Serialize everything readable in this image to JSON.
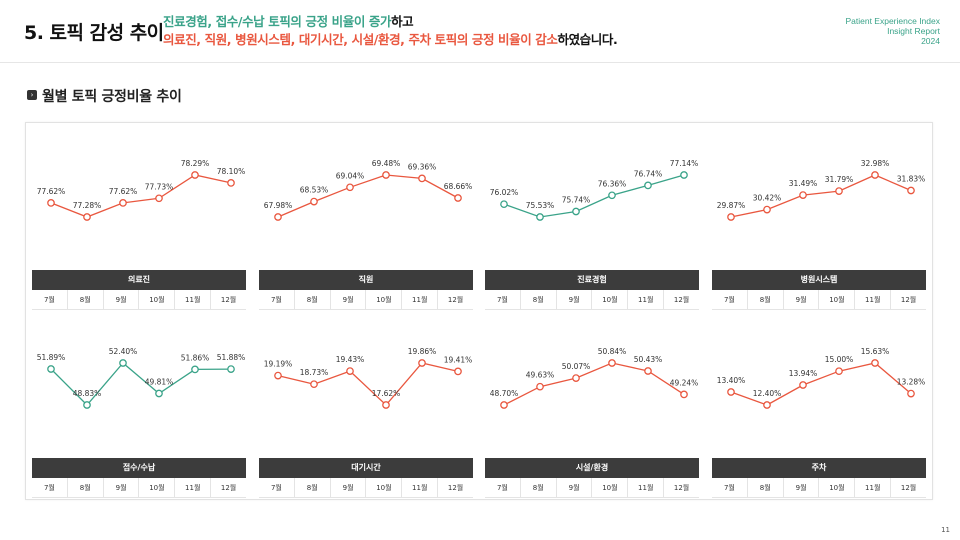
{
  "header": {
    "title": "5. 토픽 감성 추이",
    "subtitle_line1": {
      "green": "진료경험, 접수/수납 토픽의 긍정 비율이 증가",
      "black": "하고"
    },
    "subtitle_line2": {
      "red": "의료진, 직원, 병원시스템, 대기시간, 시설/환경, 주차 토픽의 긍정 비율이 감소",
      "black": "하였습니다."
    },
    "report_lines": [
      "Patient Experience Index",
      "Insight Report",
      "2024"
    ]
  },
  "section": {
    "icon": "chevron-right-icon",
    "title": "월별 토픽 긍정비율 추이"
  },
  "colors": {
    "increase": "#3aa389",
    "decrease": "#e9573f",
    "bar": "#3c3c3c"
  },
  "page_number": "11",
  "chart_data": [
    {
      "type": "line",
      "title": "의료진",
      "trend": "decrease",
      "categories": [
        "7월",
        "8월",
        "9월",
        "10월",
        "11월",
        "12월"
      ],
      "values": [
        77.62,
        77.28,
        77.62,
        77.73,
        78.29,
        78.1
      ],
      "labels": [
        "77.62%",
        "77.28%",
        "77.62%",
        "77.73%",
        "78.29%",
        "78.10%"
      ]
    },
    {
      "type": "line",
      "title": "직원",
      "trend": "decrease",
      "categories": [
        "7월",
        "8월",
        "9월",
        "10월",
        "11월",
        "12월"
      ],
      "values": [
        67.98,
        68.53,
        69.04,
        69.48,
        69.36,
        68.66
      ],
      "labels": [
        "67.98%",
        "68.53%",
        "69.04%",
        "69.48%",
        "69.36%",
        "68.66%"
      ]
    },
    {
      "type": "line",
      "title": "진료경험",
      "trend": "increase",
      "categories": [
        "7월",
        "8월",
        "9월",
        "10월",
        "11월",
        "12월"
      ],
      "values": [
        76.02,
        75.53,
        75.74,
        76.36,
        76.74,
        77.14
      ],
      "labels": [
        "76.02%",
        "75.53%",
        "75.74%",
        "76.36%",
        "76.74%",
        "77.14%"
      ]
    },
    {
      "type": "line",
      "title": "병원시스템",
      "trend": "decrease",
      "categories": [
        "7월",
        "8월",
        "9월",
        "10월",
        "11월",
        "12월"
      ],
      "values": [
        29.87,
        30.42,
        31.49,
        31.79,
        32.98,
        31.83
      ],
      "labels": [
        "29.87%",
        "30.42%",
        "31.49%",
        "31.79%",
        "32.98%",
        "31.83%"
      ]
    },
    {
      "type": "line",
      "title": "접수/수납",
      "trend": "increase",
      "categories": [
        "7월",
        "8월",
        "9월",
        "10월",
        "11월",
        "12월"
      ],
      "values": [
        51.89,
        48.83,
        52.4,
        49.81,
        51.86,
        51.88
      ],
      "labels": [
        "51.89%",
        "48.83%",
        "52.40%",
        "49.81%",
        "51.86%",
        "51.88%"
      ]
    },
    {
      "type": "line",
      "title": "대기시간",
      "trend": "decrease",
      "categories": [
        "7월",
        "8월",
        "9월",
        "10월",
        "11월",
        "12월"
      ],
      "values": [
        19.19,
        18.73,
        19.43,
        17.62,
        19.86,
        19.41
      ],
      "labels": [
        "19.19%",
        "18.73%",
        "19.43%",
        "17.62%",
        "19.86%",
        "19.41%"
      ]
    },
    {
      "type": "line",
      "title": "시설/환경",
      "trend": "decrease",
      "categories": [
        "7월",
        "8월",
        "9월",
        "10월",
        "11월",
        "12월"
      ],
      "values": [
        48.7,
        49.63,
        50.07,
        50.84,
        50.43,
        49.24
      ],
      "labels": [
        "48.70%",
        "49.63%",
        "50.07%",
        "50.84%",
        "50.43%",
        "49.24%"
      ]
    },
    {
      "type": "line",
      "title": "주차",
      "trend": "decrease",
      "categories": [
        "7월",
        "8월",
        "9월",
        "10월",
        "11월",
        "12월"
      ],
      "values": [
        13.4,
        12.4,
        13.94,
        15.0,
        15.63,
        13.28
      ],
      "labels": [
        "13.40%",
        "12.40%",
        "13.94%",
        "15.00%",
        "15.63%",
        "13.28%"
      ]
    }
  ]
}
